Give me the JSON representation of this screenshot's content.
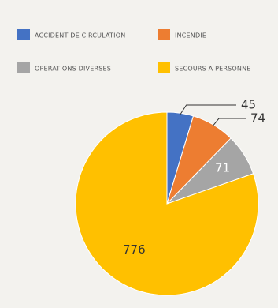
{
  "chart_data": {
    "type": "pie",
    "categories": [
      "ACCIDENT DE CIRCULATION",
      "INCENDIE",
      "OPERATIONS DIVERSES",
      "SECOURS A PERSONNE"
    ],
    "values": [
      45,
      74,
      71,
      776
    ],
    "colors": [
      "#4472c4",
      "#ed7d31",
      "#a5a5a5",
      "#ffc000"
    ]
  }
}
